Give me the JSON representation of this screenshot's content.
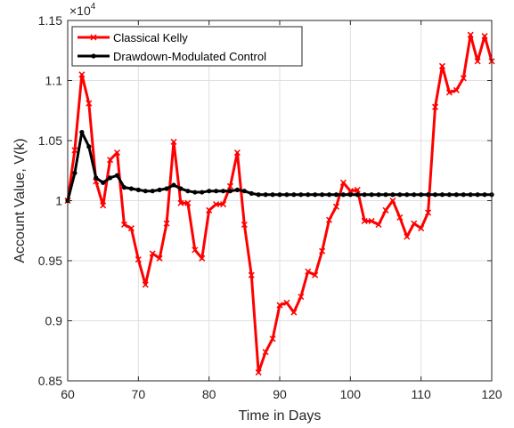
{
  "chart_data": {
    "type": "line",
    "title": "",
    "xlabel": "Time in Days",
    "ylabel": "Account Value, V(k)",
    "exponent_label": "×10",
    "exponent_power": "4",
    "xlim": [
      60,
      120
    ],
    "ylim": [
      8500,
      11500
    ],
    "xticks": [
      60,
      70,
      80,
      90,
      100,
      110,
      120
    ],
    "yticks": [
      8500,
      9000,
      9500,
      10000,
      10500,
      11000,
      11500
    ],
    "ytick_labels": [
      "0.85",
      "0.9",
      "0.95",
      "1",
      "1.05",
      "1.1",
      "1.15"
    ],
    "grid": true,
    "legend_position": "top-left",
    "series": [
      {
        "name": "Classical Kelly",
        "color": "#ff0000",
        "marker": "x",
        "x": [
          60,
          61,
          62,
          63,
          64,
          65,
          66,
          67,
          68,
          69,
          70,
          71,
          72,
          73,
          74,
          75,
          76,
          77,
          78,
          79,
          80,
          81,
          82,
          83,
          84,
          85,
          86,
          87,
          88,
          89,
          90,
          91,
          92,
          93,
          94,
          95,
          96,
          97,
          98,
          99,
          100,
          101,
          102,
          103,
          104,
          105,
          106,
          107,
          108,
          109,
          110,
          111,
          112,
          113,
          114,
          115,
          116,
          117,
          118,
          119,
          120
        ],
        "y": [
          10000,
          10420,
          11050,
          10810,
          10160,
          9960,
          10340,
          10400,
          9800,
          9770,
          9510,
          9300,
          9560,
          9520,
          9810,
          10490,
          9980,
          9980,
          9590,
          9520,
          9920,
          9970,
          9970,
          10120,
          10400,
          9800,
          9380,
          8570,
          8740,
          8850,
          9130,
          9150,
          9070,
          9200,
          9410,
          9380,
          9580,
          9840,
          9950,
          10150,
          10080,
          10090,
          9830,
          9830,
          9800,
          9920,
          10000,
          9860,
          9700,
          9810,
          9770,
          9900,
          10780,
          11120,
          10900,
          10920,
          11020,
          11380,
          11160,
          11370,
          11160
        ]
      },
      {
        "name": "Drawdown-Modulated Control",
        "color": "#000000",
        "marker": "o",
        "x": [
          60,
          61,
          62,
          63,
          64,
          65,
          66,
          67,
          68,
          69,
          70,
          71,
          72,
          73,
          74,
          75,
          76,
          77,
          78,
          79,
          80,
          81,
          82,
          83,
          84,
          85,
          86,
          87,
          88,
          89,
          90,
          91,
          92,
          93,
          94,
          95,
          96,
          97,
          98,
          99,
          100,
          101,
          102,
          103,
          104,
          105,
          106,
          107,
          108,
          109,
          110,
          111,
          112,
          113,
          114,
          115,
          116,
          117,
          118,
          119,
          120
        ],
        "y": [
          10000,
          10230,
          10570,
          10450,
          10190,
          10150,
          10190,
          10210,
          10110,
          10100,
          10090,
          10080,
          10080,
          10090,
          10100,
          10130,
          10100,
          10080,
          10070,
          10070,
          10080,
          10080,
          10080,
          10080,
          10090,
          10080,
          10060,
          10050,
          10050,
          10050,
          10050,
          10050,
          10050,
          10050,
          10050,
          10050,
          10050,
          10050,
          10050,
          10050,
          10050,
          10050,
          10050,
          10050,
          10050,
          10050,
          10050,
          10050,
          10050,
          10050,
          10050,
          10050,
          10050,
          10050,
          10050,
          10050,
          10050,
          10050,
          10050,
          10050,
          10050
        ]
      }
    ]
  }
}
